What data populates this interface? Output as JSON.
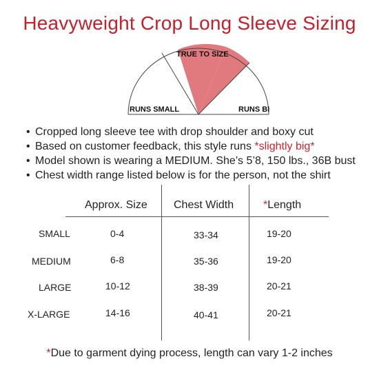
{
  "title": "Heavyweight Crop Long Sleeve Sizing",
  "gauge": {
    "left_label": "RUNS SMALL",
    "center_label": "TRUE TO SIZE",
    "right_label": "RUNS BIG",
    "highlight_color": "#e07a7e"
  },
  "bullets": [
    {
      "text": "Cropped long sleeve tee with drop shoulder and boxy cut",
      "highlight": ""
    },
    {
      "text": "Based on customer feedback, this style runs ",
      "highlight": "*slightly big*"
    },
    {
      "text": "Model shown is wearing a MEDIUM. She’s 5’8, 150 lbs., 36B bust",
      "highlight": ""
    },
    {
      "text": "Chest width range listed below is for the person, not the shirt",
      "highlight": ""
    }
  ],
  "table": {
    "headers": {
      "size": "Approx. Size",
      "chest": "Chest Width",
      "length_mark": "*",
      "length": "Length"
    },
    "rows": [
      {
        "label": "SMALL",
        "size": "0-4",
        "chest": "33-34",
        "length": "19-20"
      },
      {
        "label": "MEDIUM",
        "size": "6-8",
        "chest": "35-36",
        "length": "19-20"
      },
      {
        "label": "LARGE",
        "size": "10-12",
        "chest": "38-39",
        "length": "20-21"
      },
      {
        "label": "X-LARGE",
        "size": "14-16",
        "chest": "40-41",
        "length": "20-21"
      }
    ]
  },
  "footer": {
    "mark": "*",
    "text": "Due to garment dying process, length can vary 1-2 inches"
  },
  "colors": {
    "accent": "#c8202a"
  }
}
